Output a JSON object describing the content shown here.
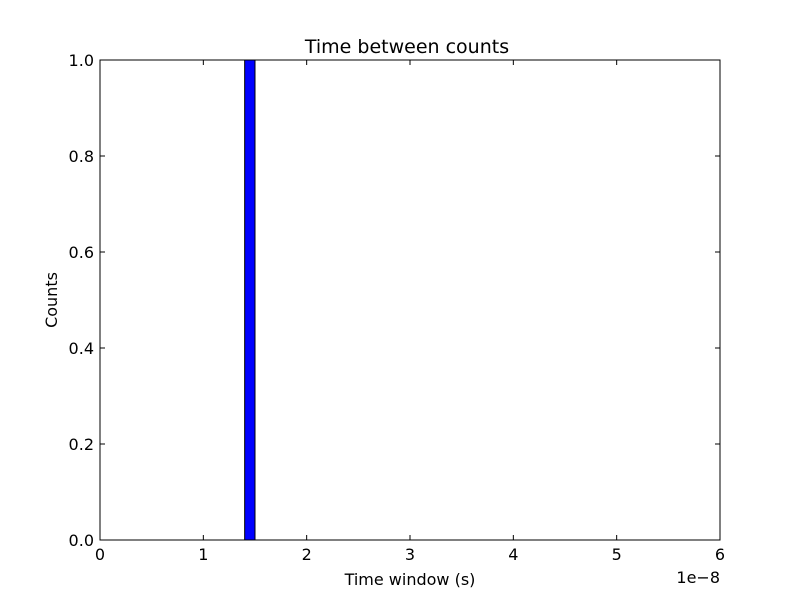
{
  "chart_data": {
    "type": "bar",
    "title": "Time between counts",
    "xlabel": "Time window (s)",
    "ylabel": "Counts",
    "xlim": [
      0,
      6e-08
    ],
    "ylim": [
      0,
      1.0
    ],
    "x_offset_label": "1e−8",
    "xticks": [
      {
        "value": 0,
        "label": "0"
      },
      {
        "value": 1e-08,
        "label": "1"
      },
      {
        "value": 2e-08,
        "label": "2"
      },
      {
        "value": 3e-08,
        "label": "3"
      },
      {
        "value": 4e-08,
        "label": "4"
      },
      {
        "value": 5e-08,
        "label": "5"
      },
      {
        "value": 6e-08,
        "label": "6"
      }
    ],
    "yticks": [
      {
        "value": 0.0,
        "label": "0.0"
      },
      {
        "value": 0.2,
        "label": "0.2"
      },
      {
        "value": 0.4,
        "label": "0.4"
      },
      {
        "value": 0.6,
        "label": "0.6"
      },
      {
        "value": 0.8,
        "label": "0.8"
      },
      {
        "value": 1.0,
        "label": "1.0"
      }
    ],
    "bins": [
      {
        "x_start": 1.4e-08,
        "x_end": 1.5e-08,
        "count": 1.0
      }
    ],
    "bar_color": "#0000ff",
    "grid": false
  }
}
